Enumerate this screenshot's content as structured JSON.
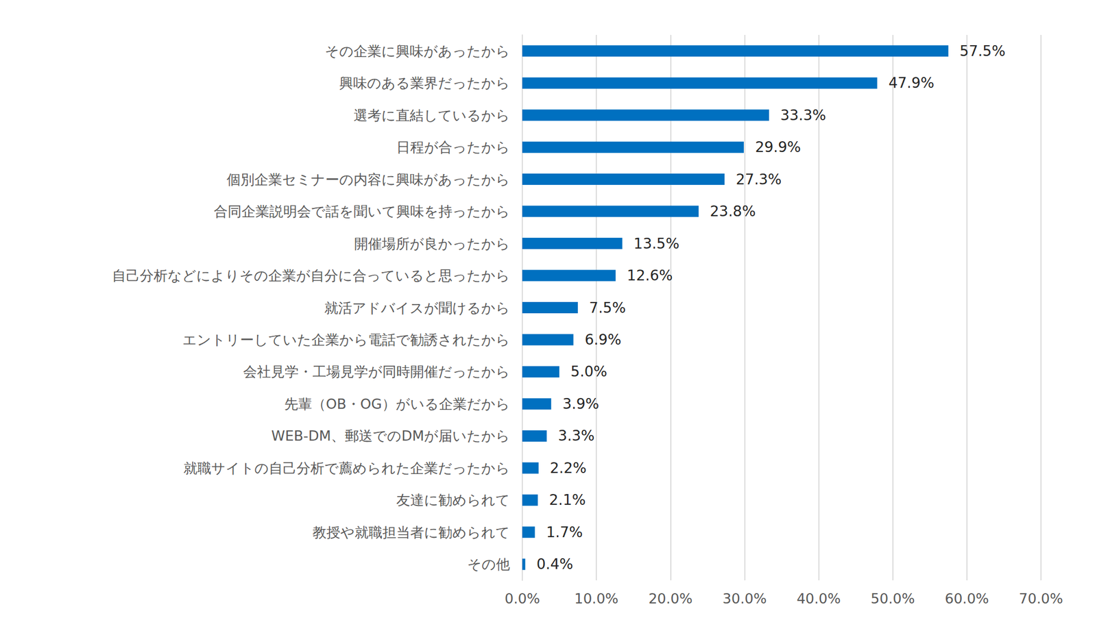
{
  "chart_data": {
    "type": "bar",
    "orientation": "horizontal",
    "categories": [
      "その企業に興味があったから",
      "興味のある業界だったから",
      "選考に直結しているから",
      "日程が合ったから",
      "個別企業セミナーの内容に興味があったから",
      "合同企業説明会で話を聞いて興味を持ったから",
      "開催場所が良かったから",
      "自己分析などによりその企業が自分に合っていると思ったから",
      "就活アドバイスが聞けるから",
      "エントリーしていた企業から電話で勧誘されたから",
      "会社見学・工場見学が同時開催だったから",
      "先輩（OB・OG）がいる企業だから",
      "WEB-DM、郵送でのDMが届いたから",
      "就職サイトの自己分析で薦められた企業だったから",
      "友達に勧められて",
      "教授や就職担当者に勧められて",
      "その他"
    ],
    "values": [
      57.5,
      47.9,
      33.3,
      29.9,
      27.3,
      23.8,
      13.5,
      12.6,
      7.5,
      6.9,
      5.0,
      3.9,
      3.3,
      2.2,
      2.1,
      1.7,
      0.4
    ],
    "value_labels": [
      "57.5%",
      "47.9%",
      "33.3%",
      "29.9%",
      "27.3%",
      "23.8%",
      "13.5%",
      "12.6%",
      "7.5%",
      "6.9%",
      "5.0%",
      "3.9%",
      "3.3%",
      "2.2%",
      "2.1%",
      "1.7%",
      "0.4%"
    ],
    "color": "#0070c0",
    "xlim": [
      0,
      70
    ],
    "xticks": [
      {
        "value": 0,
        "label": "0.0%"
      },
      {
        "value": 10,
        "label": "10.0%"
      },
      {
        "value": 20,
        "label": "20.0%"
      },
      {
        "value": 30,
        "label": "30.0%"
      },
      {
        "value": 40,
        "label": "40.0%"
      },
      {
        "value": 50,
        "label": "50.0%"
      },
      {
        "value": 60,
        "label": "60.0%"
      },
      {
        "value": 70,
        "label": "70.0%"
      }
    ],
    "grid": true,
    "data_labels": true
  }
}
